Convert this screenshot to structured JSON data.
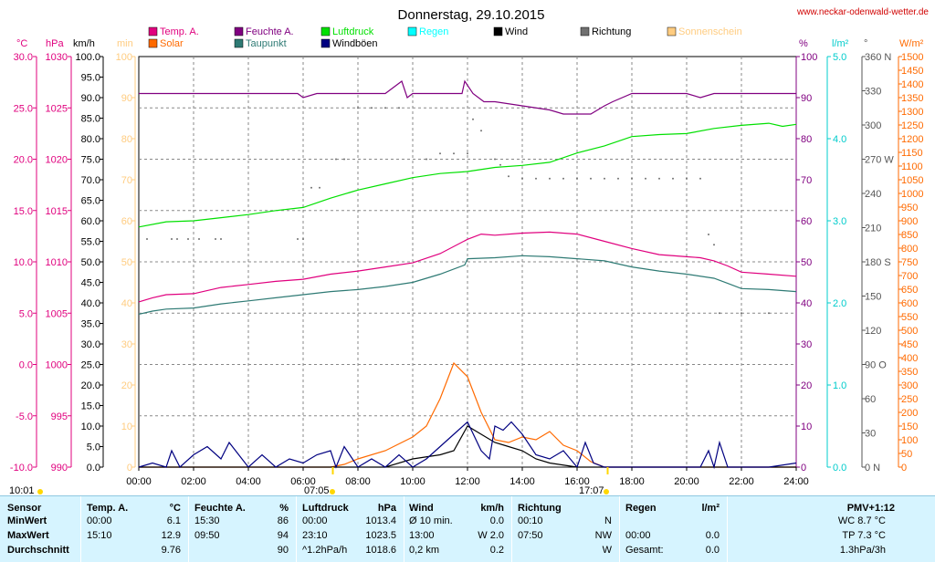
{
  "title": "Donnerstag, 29.10.2015",
  "website": "www.neckar-odenwald-wetter.de",
  "legend": [
    {
      "label": "Temp. A.",
      "color": "#e0007e"
    },
    {
      "label": "Feuchte A.",
      "color": "#800080"
    },
    {
      "label": "Luftdruck",
      "color": "#00e000"
    },
    {
      "label": "Regen",
      "color": "#00ffff"
    },
    {
      "label": "Wind",
      "color": "#000000"
    },
    {
      "label": "Richtung",
      "color": "#707070"
    },
    {
      "label": "Sonnenschein",
      "color": "#ffcc80"
    },
    {
      "label": "Solar",
      "color": "#ff6a00"
    },
    {
      "label": "Taupunkt",
      "color": "#2e7a74"
    },
    {
      "label": "Windböen",
      "color": "#000080"
    }
  ],
  "axis_units": {
    "temp": "°C",
    "pressure": "hPa",
    "wind": "km/h",
    "sun": "min",
    "humidity": "%",
    "rain": "l/m²",
    "direction": "°",
    "solar": "W/m²"
  },
  "sun_marks": {
    "left": "10:01",
    "sunrise": "07:05",
    "sunset": "17:07"
  },
  "chart_data": {
    "type": "line",
    "x_label": "time",
    "x_ticks": [
      "00:00",
      "02:00",
      "04:00",
      "06:00",
      "08:00",
      "10:00",
      "12:00",
      "14:00",
      "16:00",
      "18:00",
      "20:00",
      "22:00",
      "24:00"
    ],
    "xlim": [
      "00:00",
      "24:00"
    ],
    "axes": {
      "temp": {
        "unit": "°C",
        "ylim": [
          -10,
          30
        ],
        "ticks": [
          "30.0",
          "25.0",
          "20.0",
          "15.0",
          "10.0",
          "5.0",
          "0.0",
          "-5.0",
          "-10.0"
        ]
      },
      "pressure": {
        "unit": "hPa",
        "ylim": [
          990,
          1030
        ],
        "ticks": [
          "1030",
          "1025",
          "1020",
          "1015",
          "1010",
          "1005",
          "1000",
          "995",
          "990"
        ]
      },
      "wind": {
        "unit": "km/h",
        "ylim": [
          0,
          100
        ],
        "ticks": [
          "100.0",
          "95.0",
          "90.0",
          "85.0",
          "80.0",
          "75.0",
          "70.0",
          "65.0",
          "60.0",
          "55.0",
          "50.0",
          "45.0",
          "40.0",
          "35.0",
          "30.0",
          "25.0",
          "20.0",
          "15.0",
          "10.0",
          "5.0",
          "0.0"
        ]
      },
      "sun": {
        "unit": "min",
        "ylim": [
          0,
          100
        ],
        "ticks": [
          "100",
          "90",
          "80",
          "70",
          "60",
          "50",
          "40",
          "30",
          "20",
          "10",
          "0"
        ]
      },
      "humidity": {
        "unit": "%",
        "ylim": [
          0,
          100
        ],
        "ticks": [
          "100",
          "90",
          "80",
          "70",
          "60",
          "50",
          "40",
          "30",
          "20",
          "10",
          "0"
        ]
      },
      "rain": {
        "unit": "l/m²",
        "ylim": [
          0,
          5
        ],
        "ticks": [
          "5.0",
          "4.0",
          "3.0",
          "2.0",
          "1.0",
          "0.0"
        ]
      },
      "direction": {
        "unit": "°",
        "ylim": [
          0,
          360
        ],
        "ticks": [
          "360 N",
          "330",
          "300",
          "270 W",
          "240",
          "210",
          "180 S",
          "150",
          "120",
          "90 O",
          "60",
          "30",
          "0 N"
        ]
      },
      "solar": {
        "unit": "W/m²",
        "ylim": [
          0,
          1500
        ],
        "ticks": [
          "1500",
          "1450",
          "1400",
          "1350",
          "1300",
          "1250",
          "1200",
          "1150",
          "1100",
          "1050",
          "1000",
          "950",
          "900",
          "850",
          "800",
          "750",
          "700",
          "650",
          "600",
          "550",
          "500",
          "450",
          "400",
          "350",
          "300",
          "250",
          "200",
          "150",
          "100",
          "50",
          "0"
        ]
      }
    },
    "series": [
      {
        "name": "Temp. A.",
        "axis": "temp",
        "color": "#e0007e",
        "x": [
          0,
          0.5,
          1,
          2,
          3,
          4,
          5,
          6,
          7,
          8,
          9,
          10,
          11,
          12,
          12.5,
          13,
          14,
          15,
          16,
          17,
          18,
          19,
          20,
          20.5,
          21,
          21.5,
          22,
          23,
          24
        ],
        "y": [
          6.1,
          6.5,
          6.8,
          6.9,
          7.5,
          7.8,
          8.1,
          8.3,
          8.8,
          9.1,
          9.5,
          9.9,
          10.8,
          12.2,
          12.7,
          12.6,
          12.8,
          12.9,
          12.7,
          12.0,
          11.3,
          10.7,
          10.5,
          10.4,
          10.1,
          9.6,
          9.0,
          8.8,
          8.6
        ]
      },
      {
        "name": "Taupunkt",
        "axis": "temp",
        "color": "#2e7a74",
        "x": [
          0,
          0.5,
          1,
          2,
          3,
          4,
          5,
          6,
          7,
          8,
          9,
          10,
          11,
          11.9,
          12,
          13,
          14,
          15,
          16,
          17,
          18,
          19,
          20,
          21,
          21.5,
          22,
          23,
          24
        ],
        "y": [
          4.9,
          5.2,
          5.4,
          5.5,
          5.9,
          6.2,
          6.5,
          6.8,
          7.1,
          7.3,
          7.6,
          8.0,
          8.8,
          9.7,
          10.3,
          10.4,
          10.6,
          10.5,
          10.3,
          10.1,
          9.5,
          9.1,
          8.8,
          8.4,
          7.9,
          7.4,
          7.3,
          7.1
        ]
      },
      {
        "name": "Luftdruck",
        "axis": "pressure",
        "color": "#00e000",
        "x": [
          0,
          1,
          2,
          3,
          4,
          5,
          6,
          7,
          8,
          9,
          10,
          11,
          12,
          13,
          14,
          15,
          16,
          17,
          18,
          19,
          20,
          21,
          22,
          23,
          23.5,
          24
        ],
        "y": [
          1013.4,
          1013.9,
          1014.0,
          1014.3,
          1014.6,
          1015.0,
          1015.3,
          1016.2,
          1017.0,
          1017.6,
          1018.2,
          1018.6,
          1018.8,
          1019.2,
          1019.4,
          1019.7,
          1020.6,
          1021.3,
          1022.2,
          1022.4,
          1022.5,
          1023.0,
          1023.3,
          1023.5,
          1023.2,
          1023.4
        ]
      },
      {
        "name": "Feuchte A.",
        "axis": "humidity",
        "color": "#800080",
        "x": [
          0,
          1,
          2,
          3,
          4,
          5,
          5.8,
          6,
          6.5,
          7,
          8,
          9,
          9.6,
          9.8,
          10,
          11,
          11.8,
          11.9,
          12.2,
          12.6,
          13,
          14,
          15,
          15.5,
          16,
          16.5,
          17,
          17.3,
          18,
          19,
          20,
          20.5,
          21,
          22,
          23,
          24
        ],
        "y": [
          91,
          91,
          91,
          91,
          91,
          91,
          91,
          90,
          91,
          91,
          91,
          91,
          94,
          90,
          91,
          91,
          91,
          94,
          91,
          89,
          89,
          88,
          87,
          86,
          86,
          86,
          88,
          89,
          91,
          91,
          91,
          90,
          91,
          91,
          91,
          91
        ]
      },
      {
        "name": "Solar",
        "axis": "solar",
        "color": "#ff6a00",
        "x": [
          0,
          7,
          7.5,
          8,
          9,
          10,
          10.5,
          11,
          11.5,
          12,
          12.5,
          13,
          13.5,
          14,
          14.5,
          15,
          15.5,
          16,
          16.5,
          17,
          24
        ],
        "y": [
          0,
          0,
          10,
          30,
          60,
          110,
          150,
          250,
          380,
          330,
          200,
          100,
          90,
          110,
          100,
          130,
          80,
          60,
          20,
          0,
          0
        ]
      },
      {
        "name": "Wind",
        "axis": "wind",
        "color": "#000000",
        "x": [
          0,
          8,
          9,
          10,
          11,
          11.5,
          12,
          12.5,
          13,
          13.5,
          14,
          14.5,
          15,
          16,
          17,
          24
        ],
        "y": [
          0,
          0,
          0,
          2,
          3,
          4,
          10,
          8,
          6,
          5,
          4,
          2,
          1,
          0,
          0,
          0
        ]
      },
      {
        "name": "Windböen",
        "axis": "wind",
        "color": "#000080",
        "x": [
          0,
          0.5,
          1,
          1.2,
          1.5,
          2,
          2.5,
          3,
          3.3,
          4,
          4.5,
          5,
          5.5,
          6,
          6.5,
          7,
          7.2,
          7.5,
          8,
          8.5,
          9,
          9.5,
          10,
          10.5,
          11,
          11.5,
          12,
          12.5,
          12.8,
          13,
          13.3,
          13.6,
          14,
          14.5,
          15,
          15.5,
          16,
          16.3,
          16.6,
          17,
          17.5,
          18,
          19,
          20,
          20.5,
          20.8,
          21,
          21.2,
          21.5,
          22,
          23,
          24
        ],
        "y": [
          0,
          1,
          0,
          4,
          0,
          3,
          5,
          2,
          6,
          0,
          3,
          0,
          2,
          1,
          3,
          4,
          0,
          5,
          0,
          2,
          0,
          3,
          0,
          2,
          5,
          8,
          11,
          4,
          2,
          10,
          9,
          11,
          8,
          3,
          2,
          4,
          0,
          6,
          1,
          0,
          0,
          0,
          0,
          0,
          0,
          4,
          0,
          6,
          0,
          0,
          0,
          1
        ]
      }
    ],
    "direction_dots": {
      "axis": "direction",
      "color": "#707070",
      "x": [
        0.3,
        1.2,
        1.4,
        1.8,
        2.2,
        2.8,
        3.0,
        5.8,
        6.0,
        6.3,
        6.6,
        7.2,
        7.5,
        8.0,
        8.5,
        9.0,
        9.5,
        10.5,
        11.0,
        11.5,
        12.0,
        12.2,
        12.5,
        13.0,
        13.2,
        13.5,
        14.0,
        14.5,
        15.0,
        15.5,
        16.0,
        16.5,
        17.0,
        17.5,
        18.0,
        18.5,
        19.0,
        19.5,
        20.0,
        20.5,
        20.8,
        21.0,
        21.2,
        22.0,
        23.0
      ],
      "y": [
        200,
        200,
        200,
        200,
        200,
        200,
        200,
        200,
        200,
        245,
        245,
        270,
        270,
        315,
        315,
        315,
        315,
        270,
        275,
        275,
        275,
        305,
        295,
        270,
        265,
        255,
        253,
        253,
        253,
        253,
        253,
        253,
        253,
        253,
        253,
        253,
        253,
        253,
        253,
        253,
        204,
        195,
        135,
        135,
        135
      ]
    }
  },
  "stats": {
    "headers": [
      "Sensor",
      "Temp. A.",
      "°C",
      "Feuchte A.",
      "%",
      "Luftdruck",
      "hPa",
      "Wind",
      "km/h",
      "Richtung",
      "Regen",
      "l/m²",
      "PMV+1:12"
    ],
    "rows": [
      {
        "label": "MinWert",
        "temp_time": "00:00",
        "temp_val": "6.1",
        "hum_time": "15:30",
        "hum_val": "86",
        "press_time": "00:00",
        "press_val": "1013.4",
        "wind_desc": "Ø 10 min.",
        "wind_val": "0.0",
        "dir_time": "00:10",
        "dir_val": "N",
        "rain_time": "",
        "rain_val": "",
        "pmv": "WC 8.7 °C"
      },
      {
        "label": "MaxWert",
        "temp_time": "15:10",
        "temp_val": "12.9",
        "hum_time": "09:50",
        "hum_val": "94",
        "press_time": "23:10",
        "press_val": "1023.5",
        "wind_desc": "13:00",
        "wind_val": "W 2.0",
        "dir_time": "07:50",
        "dir_val": "NW",
        "rain_time": "00:00",
        "rain_val": "0.0",
        "pmv": "TP 7.3 °C"
      },
      {
        "label": "Durchschnitt",
        "temp_time": "",
        "temp_val": "9.76",
        "hum_time": "",
        "hum_val": "90",
        "press_time": "^1.2hPa/h",
        "press_val": "1018.6",
        "wind_desc": "0,2 km",
        "wind_val": "0.2",
        "dir_time": "",
        "dir_val": "W",
        "rain_time": "Gesamt:",
        "rain_val": "0.0",
        "pmv": "1.3hPa/3h"
      }
    ]
  }
}
